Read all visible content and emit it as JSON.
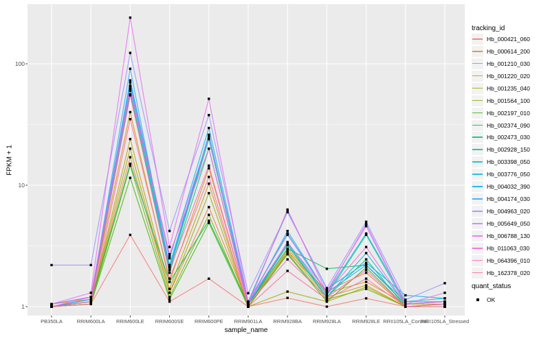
{
  "chart": {
    "y_axis": {
      "label": "FPKM + 1",
      "ticks": [
        {
          "label": "100",
          "value": 100
        },
        {
          "label": "10",
          "value": 10
        },
        {
          "label": "1",
          "value": 1
        }
      ]
    },
    "x_axis": {
      "label": "sample_name"
    },
    "legend": {
      "title": "tracking_id",
      "quant_title": "quant_status",
      "quant_ok_label": "OK"
    }
  },
  "colors": {
    "panel_bg": "#EBEBEB",
    "grid_major": "#FFFFFF",
    "grid_minor": "#FFFFFF",
    "tick_mark": "#333333",
    "tick_text": "#4D4D4D",
    "point": "#000000",
    "legend_key_bg": "#F2F2F2"
  },
  "chart_data": {
    "type": "line",
    "title": "",
    "xlabel": "sample_name",
    "ylabel": "FPKM + 1",
    "yscale": "log10",
    "ylim": [
      0.95,
      310
    ],
    "grid": true,
    "legend_position": "right",
    "marker": "black-square",
    "quant_status": "OK",
    "x_categories": [
      "PB350LA",
      "RRIM600LA",
      "RRIM600LE",
      "RRIM600SE",
      "RRIM600PE",
      "RRIM901LA",
      "RRIM928BA",
      "RRIM928LA",
      "RRIM928LE",
      "RRII105LA_Control",
      "RRII105LA_Stressed"
    ],
    "series": [
      {
        "name": "Hb_000421_060",
        "color": "#F8766D",
        "values": [
          1.0,
          1.05,
          3.9,
          1.1,
          1.7,
          1.0,
          1.18,
          1.0,
          1.17,
          1.0,
          1.0
        ]
      },
      {
        "name": "Hb_000614_200",
        "color": "#EA8331",
        "values": [
          1.0,
          1.1,
          17,
          1.3,
          6.6,
          1.05,
          2.8,
          1.35,
          1.9,
          1.0,
          1.05
        ]
      },
      {
        "name": "Hb_001210_030",
        "color": "#D89000",
        "values": [
          1.05,
          1.15,
          40,
          1.6,
          13.8,
          1.05,
          3.0,
          1.3,
          1.6,
          1.05,
          1.05
        ]
      },
      {
        "name": "Hb_001220_020",
        "color": "#C09B00",
        "values": [
          1.0,
          1.1,
          24,
          1.4,
          10.3,
          1.0,
          2.9,
          1.2,
          1.5,
          1.0,
          1.0
        ]
      },
      {
        "name": "Hb_001235_040",
        "color": "#A3A500",
        "values": [
          1.0,
          1.1,
          20,
          1.3,
          8.6,
          1.0,
          1.33,
          1.1,
          1.45,
          1.0,
          1.05
        ]
      },
      {
        "name": "Hb_001564_100",
        "color": "#7CAE00",
        "values": [
          1.0,
          1.05,
          14.5,
          1.2,
          5.7,
          1.0,
          2.75,
          1.15,
          1.4,
          1.0,
          1.0
        ]
      },
      {
        "name": "Hb_002197_010",
        "color": "#39B600",
        "values": [
          1.0,
          1.05,
          11.5,
          1.15,
          4.9,
          1.0,
          2.7,
          1.1,
          2.1,
          1.0,
          1.0
        ]
      },
      {
        "name": "Hb_002374_090",
        "color": "#00BB4E",
        "values": [
          1.0,
          1.1,
          15,
          1.6,
          5.1,
          1.05,
          3.0,
          2.05,
          2.2,
          1.05,
          1.1
        ]
      },
      {
        "name": "Hb_002473_030",
        "color": "#00BF7D",
        "values": [
          1.0,
          1.1,
          56,
          1.9,
          20,
          1.05,
          3.2,
          1.2,
          2.45,
          1.0,
          1.05
        ]
      },
      {
        "name": "Hb_002928_150",
        "color": "#00C1A3",
        "values": [
          1.0,
          1.15,
          60,
          2.0,
          24,
          1.05,
          3.4,
          1.25,
          3.9,
          1.05,
          1.1
        ]
      },
      {
        "name": "Hb_003398_050",
        "color": "#00BFC4",
        "values": [
          1.05,
          1.2,
          65,
          2.1,
          25,
          1.1,
          4.0,
          1.3,
          4.0,
          1.1,
          1.17
        ]
      },
      {
        "name": "Hb_003776_050",
        "color": "#00BAE0",
        "values": [
          1.0,
          1.15,
          70,
          2.2,
          26,
          1.05,
          3.3,
          1.2,
          2.76,
          1.05,
          1.1
        ]
      },
      {
        "name": "Hb_004032_390",
        "color": "#00B0F6",
        "values": [
          1.05,
          1.2,
          73,
          2.5,
          29.6,
          1.1,
          6.1,
          1.4,
          2.3,
          1.24,
          1.17
        ]
      },
      {
        "name": "Hb_004174_030",
        "color": "#35A2FF",
        "values": [
          1.0,
          1.15,
          91,
          2.1,
          26,
          1.05,
          4.2,
          1.3,
          2.2,
          1.1,
          1.1
        ]
      },
      {
        "name": "Hb_004963_020",
        "color": "#9590FF",
        "values": [
          2.2,
          2.2,
          123,
          4.2,
          37.8,
          1.29,
          6.0,
          1.42,
          5.0,
          1.14,
          1.56
        ]
      },
      {
        "name": "Hb_005649_050",
        "color": "#C77CFF",
        "values": [
          1.05,
          1.2,
          66,
          2.6,
          25,
          1.1,
          3.9,
          1.3,
          4.8,
          1.05,
          1.1
        ]
      },
      {
        "name": "Hb_006788_130",
        "color": "#E76BF3",
        "values": [
          1.05,
          1.3,
          240,
          3.1,
          51.5,
          1.1,
          3.35,
          1.35,
          4.6,
          1.05,
          1.3
        ]
      },
      {
        "name": "Hb_011063_030",
        "color": "#FA62DB",
        "values": [
          1.0,
          1.2,
          62,
          2.7,
          20,
          1.05,
          6.3,
          1.3,
          3.1,
          1.05,
          1.1
        ]
      },
      {
        "name": "Hb_064396_010",
        "color": "#FF62BC",
        "values": [
          1.0,
          1.1,
          55,
          2.0,
          14.5,
          1.05,
          2.45,
          1.2,
          2.0,
          1.0,
          1.05
        ]
      },
      {
        "name": "Hb_162378_020",
        "color": "#FF6A98",
        "values": [
          1.0,
          1.05,
          35,
          1.7,
          11.7,
          1.0,
          1.97,
          1.15,
          1.7,
          1.0,
          1.0
        ]
      }
    ]
  }
}
